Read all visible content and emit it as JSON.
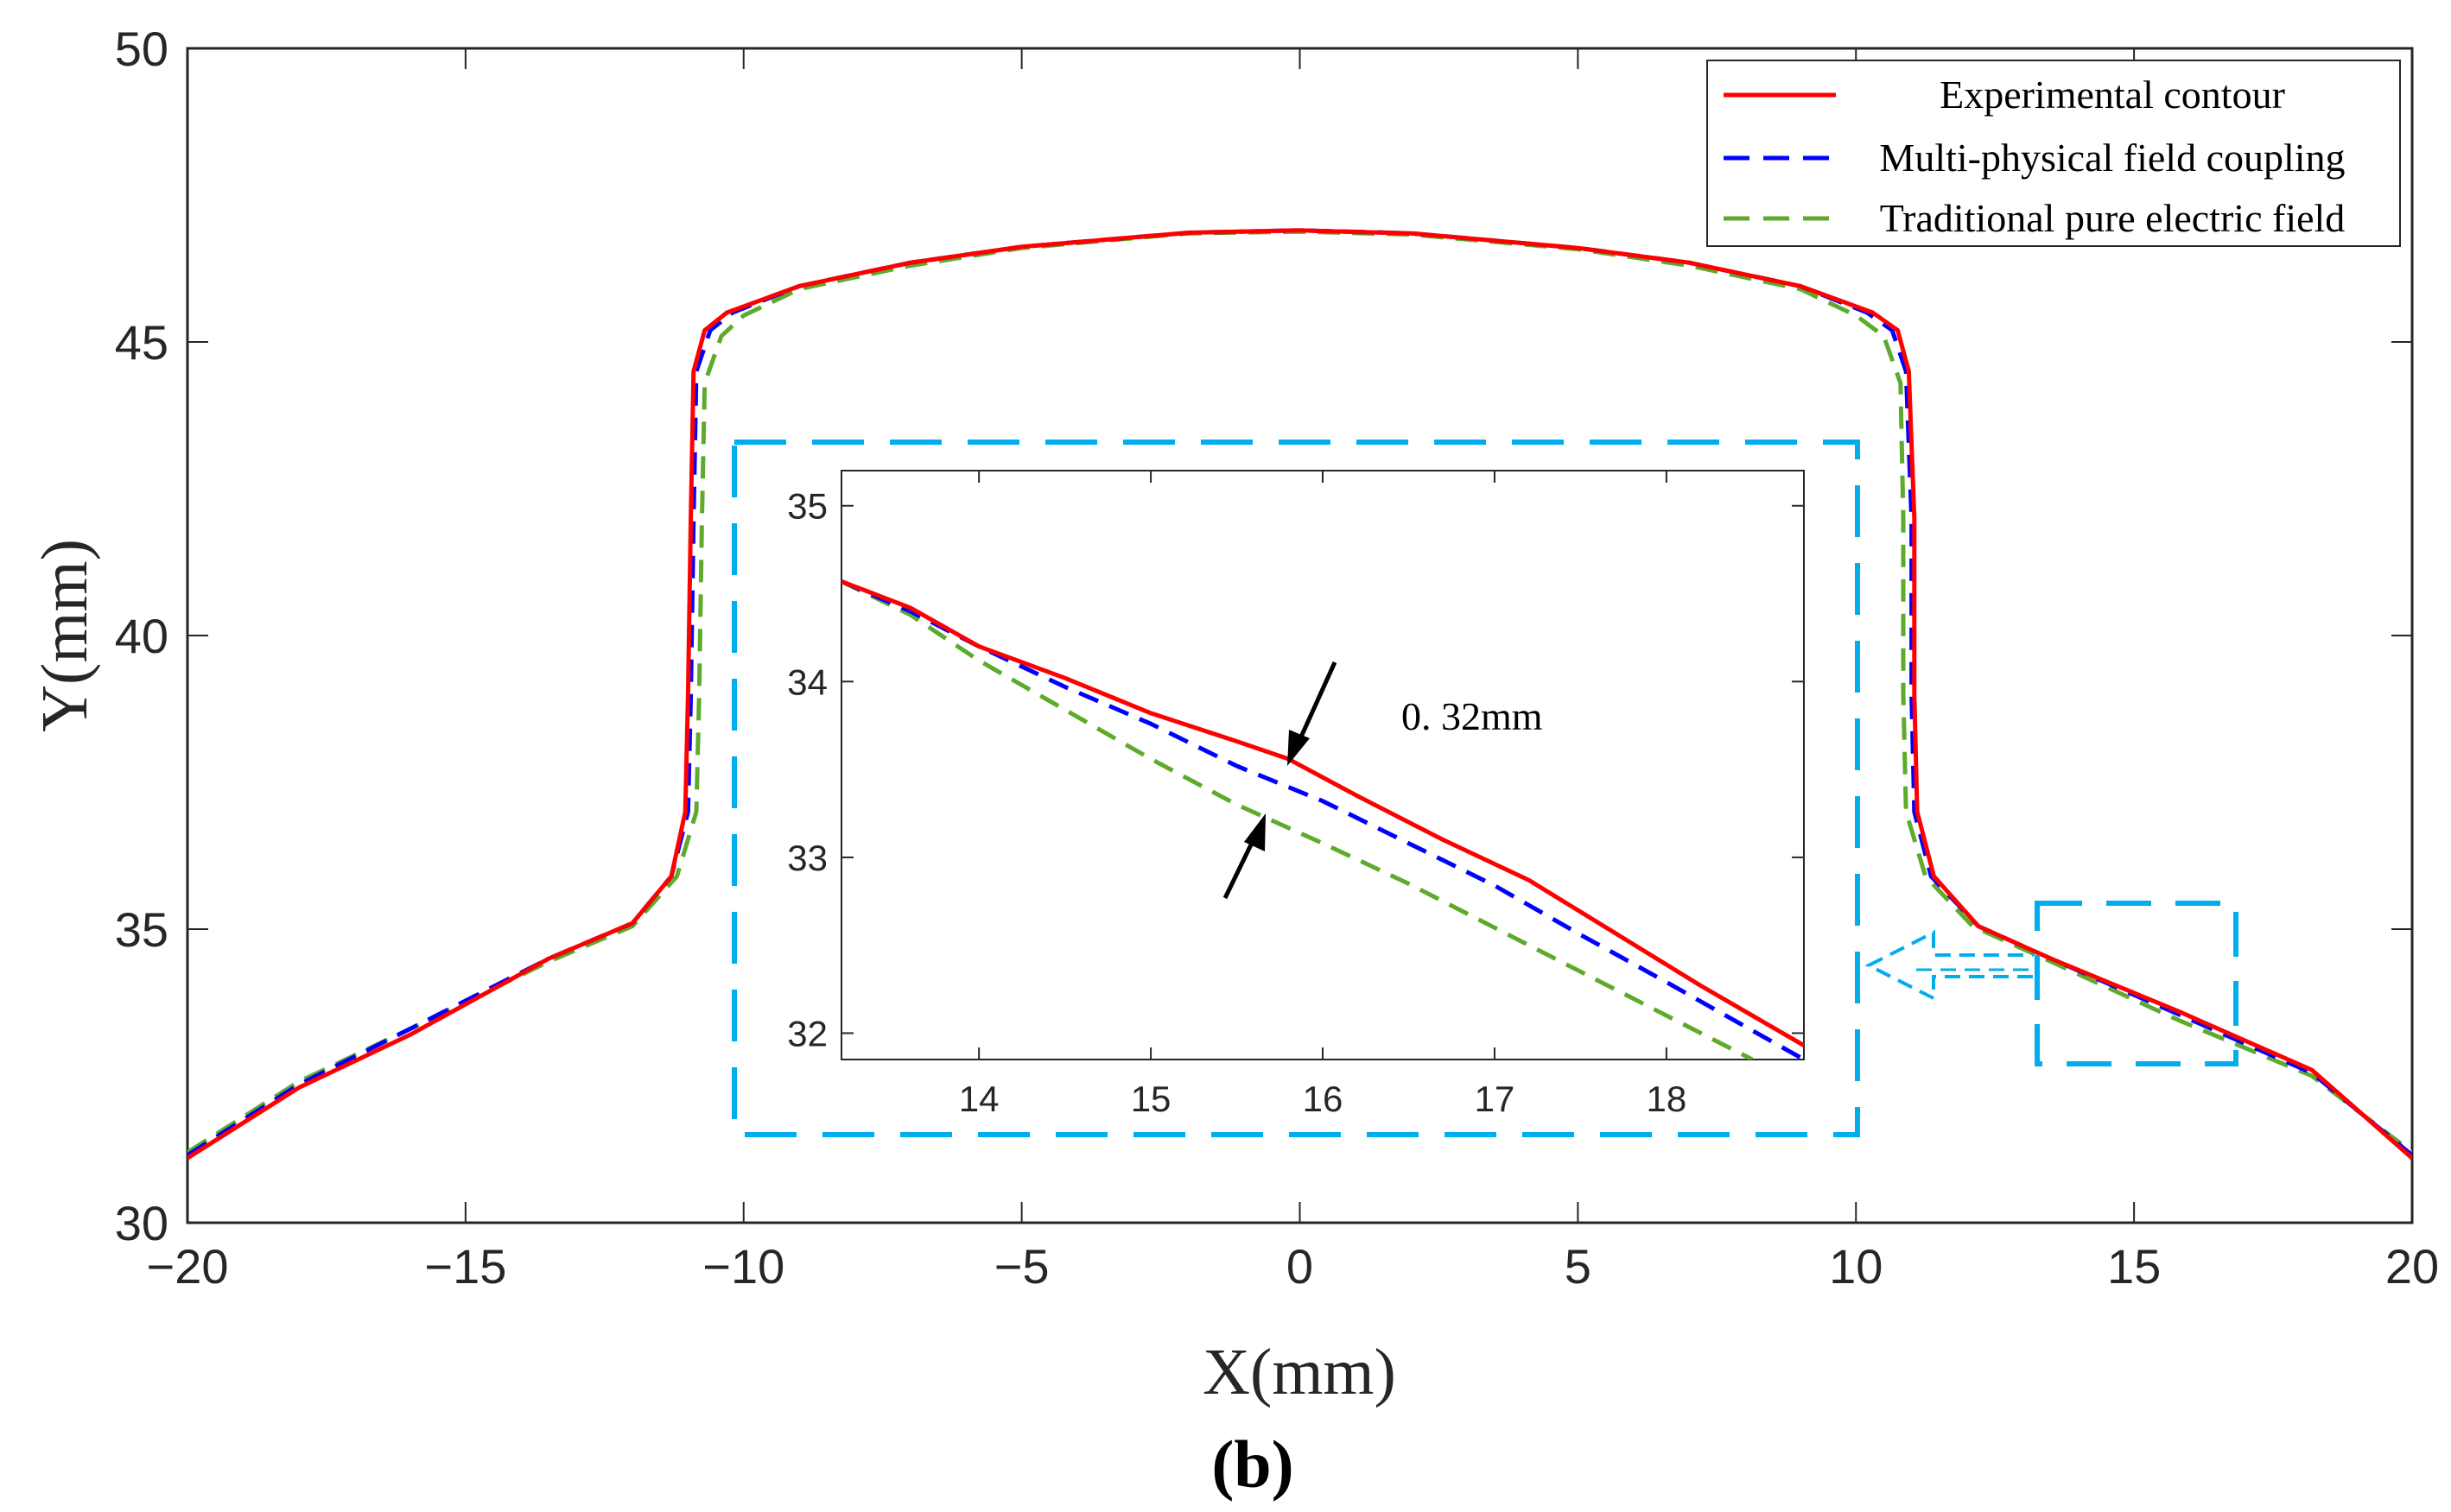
{
  "chart_data": [
    {
      "id": "main",
      "type": "line",
      "xlabel": "X(mm)",
      "ylabel": "Y(mm)",
      "xlim": [
        -20,
        20
      ],
      "ylim": [
        30,
        50
      ],
      "xticks": [
        -20,
        -15,
        -10,
        -5,
        0,
        5,
        10,
        15,
        20
      ],
      "xtick_labels": [
        "−20",
        "−15",
        "−10",
        "−5",
        "0",
        "5",
        "10",
        "15",
        "20"
      ],
      "yticks": [
        30,
        35,
        40,
        45,
        50
      ],
      "ytick_labels": [
        "30",
        "35",
        "40",
        "45",
        "50"
      ],
      "grid": false,
      "legend_position": "top-right",
      "series": [
        {
          "name": "Experimental contour",
          "color": "#ff0000",
          "style": "solid",
          "points": [
            [
              -20,
              31.1
            ],
            [
              -18,
              32.3
            ],
            [
              -16,
              33.2
            ],
            [
              -13.5,
              34.5
            ],
            [
              -12,
              35.1
            ],
            [
              -11.3,
              35.9
            ],
            [
              -11.05,
              37.0
            ],
            [
              -11.0,
              39.0
            ],
            [
              -10.95,
              42.0
            ],
            [
              -10.9,
              44.5
            ],
            [
              -10.7,
              45.2
            ],
            [
              -10.3,
              45.5
            ],
            [
              -9,
              45.95
            ],
            [
              -7,
              46.35
            ],
            [
              -5,
              46.62
            ],
            [
              -2,
              46.86
            ],
            [
              0,
              46.9
            ],
            [
              2,
              46.85
            ],
            [
              5,
              46.6
            ],
            [
              7,
              46.35
            ],
            [
              9,
              45.95
            ],
            [
              10.3,
              45.5
            ],
            [
              10.75,
              45.2
            ],
            [
              10.95,
              44.5
            ],
            [
              11.05,
              42.0
            ],
            [
              11.05,
              39.0
            ],
            [
              11.1,
              37.0
            ],
            [
              11.4,
              35.9
            ],
            [
              12.2,
              35.05
            ],
            [
              13.5,
              34.5
            ],
            [
              15.8,
              33.6
            ],
            [
              18.2,
              32.6
            ],
            [
              20,
              31.1
            ]
          ]
        },
        {
          "name": "Multi-physical field coupling",
          "color": "#0000ff",
          "style": "dashed",
          "points": [
            [
              -20,
              31.15
            ],
            [
              -18,
              32.35
            ],
            [
              -16,
              33.3
            ],
            [
              -13.5,
              34.5
            ],
            [
              -12,
              35.1
            ],
            [
              -11.3,
              35.9
            ],
            [
              -11.0,
              37.0
            ],
            [
              -10.95,
              39.0
            ],
            [
              -10.9,
              42.0
            ],
            [
              -10.85,
              44.5
            ],
            [
              -10.6,
              45.2
            ],
            [
              -10.2,
              45.5
            ],
            [
              -9,
              45.95
            ],
            [
              -7,
              46.35
            ],
            [
              -5,
              46.62
            ],
            [
              -2,
              46.86
            ],
            [
              0,
              46.9
            ],
            [
              2,
              46.85
            ],
            [
              5,
              46.6
            ],
            [
              7,
              46.35
            ],
            [
              9,
              45.95
            ],
            [
              10.2,
              45.5
            ],
            [
              10.65,
              45.2
            ],
            [
              10.9,
              44.5
            ],
            [
              11.0,
              42.0
            ],
            [
              11.0,
              39.0
            ],
            [
              11.05,
              37.0
            ],
            [
              11.35,
              35.9
            ],
            [
              12.2,
              35.05
            ],
            [
              13.5,
              34.5
            ],
            [
              15.8,
              33.55
            ],
            [
              18.2,
              32.55
            ],
            [
              20,
              31.15
            ]
          ]
        },
        {
          "name": "Traditional pure electric field",
          "color": "#5daa2d",
          "style": "dashed",
          "points": [
            [
              -20,
              31.2
            ],
            [
              -18,
              32.4
            ],
            [
              -16,
              33.3
            ],
            [
              -13.5,
              34.45
            ],
            [
              -12,
              35.05
            ],
            [
              -11.2,
              35.9
            ],
            [
              -10.85,
              37.0
            ],
            [
              -10.8,
              39.0
            ],
            [
              -10.75,
              42.0
            ],
            [
              -10.7,
              44.3
            ],
            [
              -10.4,
              45.1
            ],
            [
              -10.0,
              45.45
            ],
            [
              -9,
              45.9
            ],
            [
              -7,
              46.3
            ],
            [
              -5,
              46.6
            ],
            [
              -2,
              46.85
            ],
            [
              0,
              46.88
            ],
            [
              2,
              46.83
            ],
            [
              5,
              46.58
            ],
            [
              7,
              46.3
            ],
            [
              9,
              45.9
            ],
            [
              10.0,
              45.45
            ],
            [
              10.5,
              45.1
            ],
            [
              10.8,
              44.3
            ],
            [
              10.85,
              42.0
            ],
            [
              10.85,
              39.0
            ],
            [
              10.9,
              37.0
            ],
            [
              11.25,
              35.9
            ],
            [
              12.1,
              35.05
            ],
            [
              13.5,
              34.45
            ],
            [
              15.8,
              33.45
            ],
            [
              18.2,
              32.5
            ],
            [
              20,
              31.2
            ]
          ]
        }
      ],
      "legend_labels": [
        "Experimental contour",
        "Multi-physical field coupling",
        "Traditional pure electric field"
      ],
      "panel_label": "(b)"
    },
    {
      "id": "inset",
      "type": "line",
      "xlim": [
        13.2,
        18.8
      ],
      "ylim": [
        31.85,
        35.2
      ],
      "xticks": [
        14,
        15,
        16,
        17,
        18
      ],
      "xtick_labels": [
        "14",
        "15",
        "16",
        "17",
        "18"
      ],
      "yticks": [
        32,
        33,
        34,
        35
      ],
      "ytick_labels": [
        "32",
        "33",
        "34",
        "35"
      ],
      "grid": false,
      "annotation": "0. 32mm",
      "series": [
        {
          "name": "Experimental contour",
          "color": "#ff0000",
          "style": "solid",
          "points": [
            [
              13.2,
              34.57
            ],
            [
              13.6,
              34.42
            ],
            [
              14.0,
              34.2
            ],
            [
              14.5,
              34.02
            ],
            [
              15.0,
              33.82
            ],
            [
              15.5,
              33.66
            ],
            [
              15.8,
              33.56
            ],
            [
              16.2,
              33.35
            ],
            [
              16.7,
              33.1
            ],
            [
              17.2,
              32.87
            ],
            [
              17.7,
              32.57
            ],
            [
              18.2,
              32.27
            ],
            [
              18.8,
              31.93
            ]
          ]
        },
        {
          "name": "Multi-physical field coupling",
          "color": "#0000ff",
          "style": "dashed",
          "points": [
            [
              13.2,
              34.57
            ],
            [
              13.6,
              34.4
            ],
            [
              14.0,
              34.2
            ],
            [
              14.5,
              33.97
            ],
            [
              15.0,
              33.76
            ],
            [
              15.5,
              33.52
            ],
            [
              16.0,
              33.32
            ],
            [
              16.5,
              33.08
            ],
            [
              17.0,
              32.84
            ],
            [
              17.5,
              32.56
            ],
            [
              18.0,
              32.29
            ],
            [
              18.8,
              31.85
            ]
          ]
        },
        {
          "name": "Traditional pure electric field",
          "color": "#5daa2d",
          "style": "dashed",
          "points": [
            [
              13.2,
              34.57
            ],
            [
              13.6,
              34.38
            ],
            [
              14.0,
              34.12
            ],
            [
              14.5,
              33.84
            ],
            [
              15.0,
              33.56
            ],
            [
              15.5,
              33.3
            ],
            [
              16.0,
              33.08
            ],
            [
              16.5,
              32.85
            ],
            [
              17.0,
              32.6
            ],
            [
              17.5,
              32.35
            ],
            [
              18.0,
              32.1
            ],
            [
              18.5,
              31.85
            ]
          ]
        }
      ]
    }
  ],
  "colors": {
    "highlight": "#00aeef",
    "axis": "#262626",
    "arrow": "#000000"
  }
}
